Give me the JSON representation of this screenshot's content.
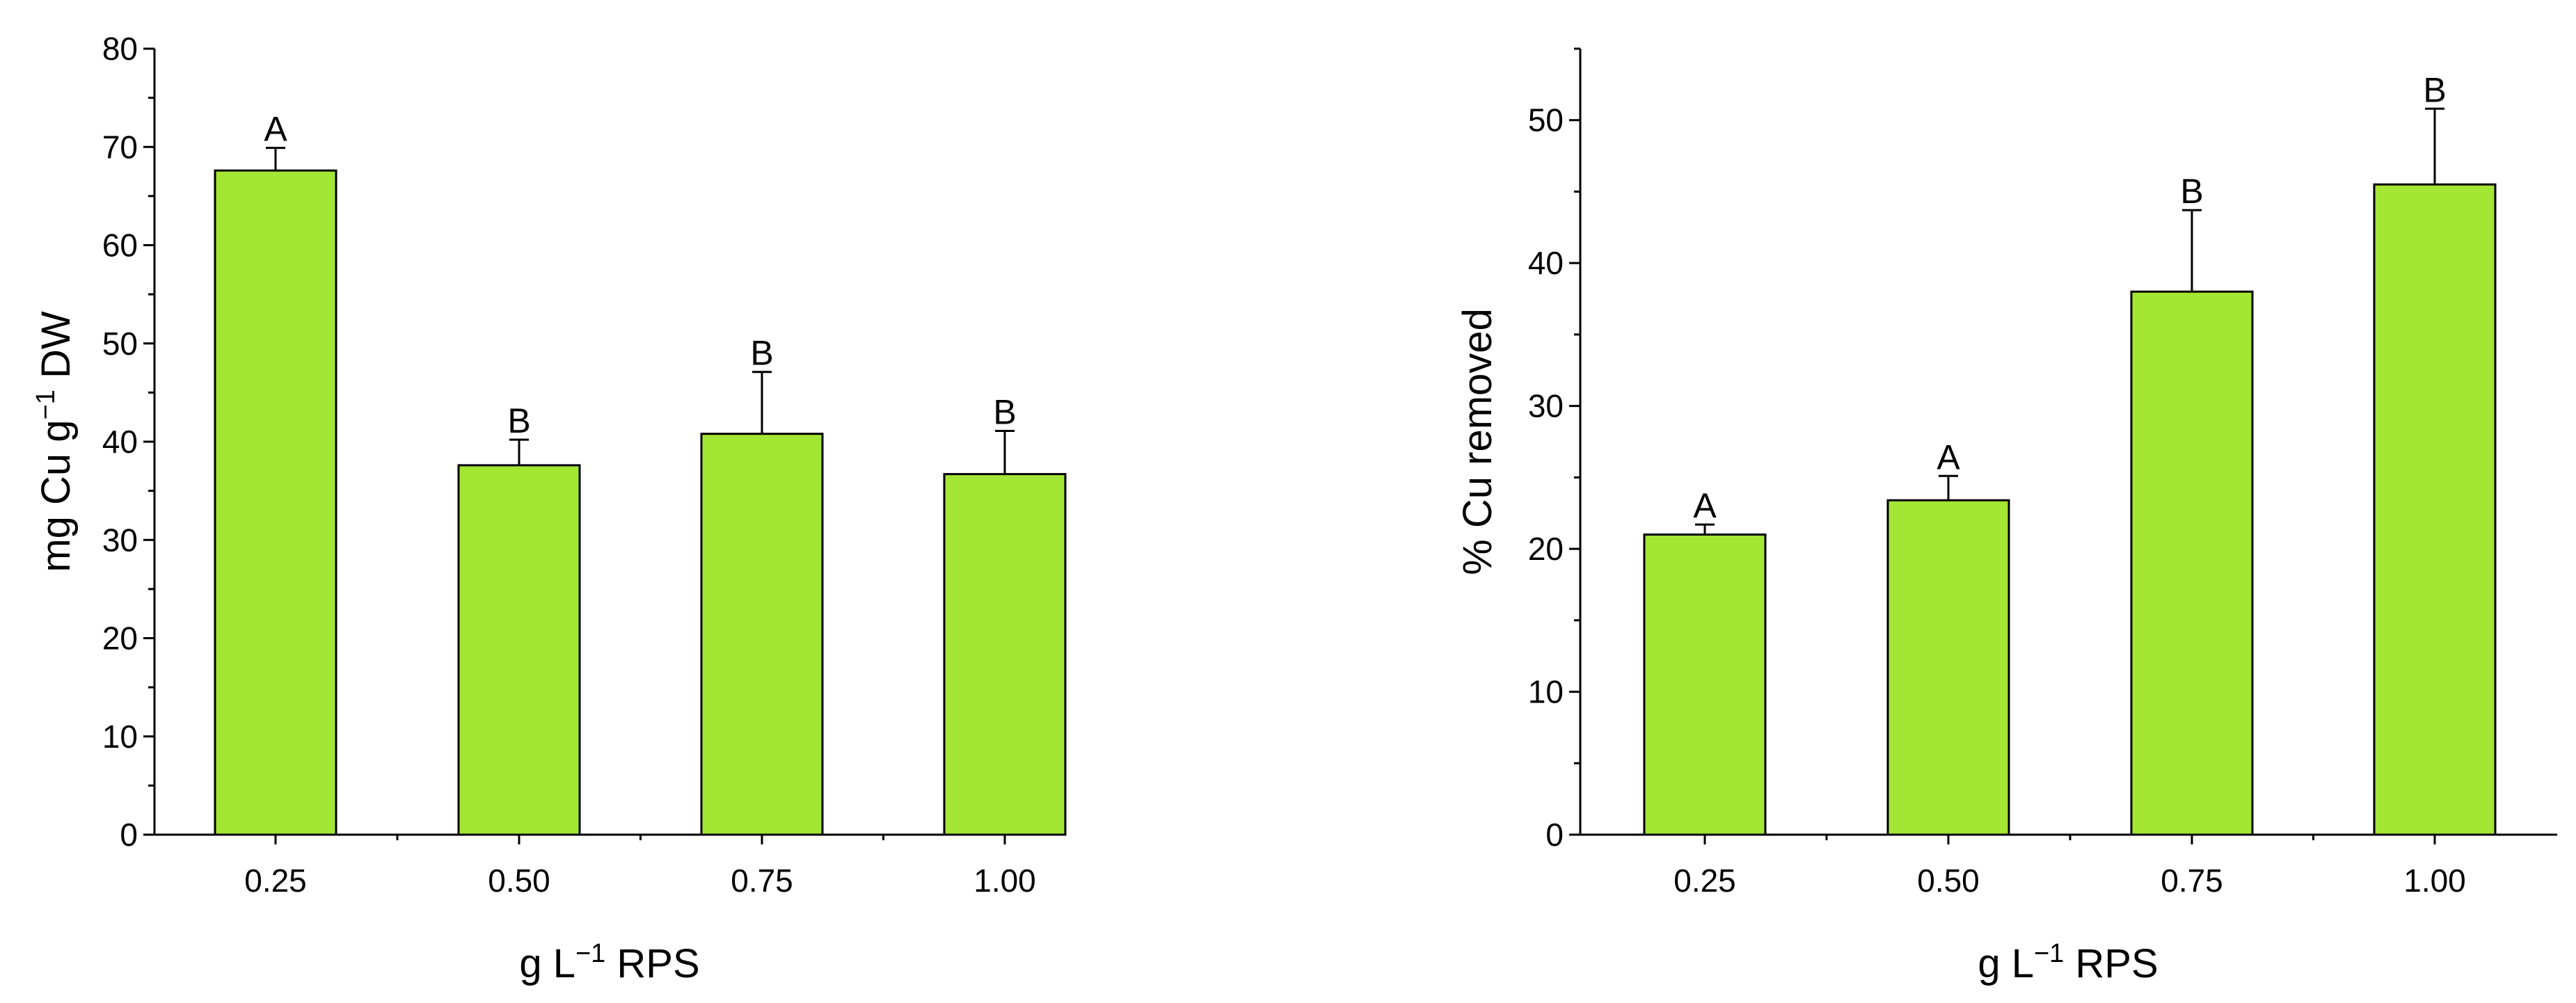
{
  "chart_data": [
    {
      "type": "bar",
      "categories": [
        "0.25",
        "0.50",
        "0.75",
        "1.00"
      ],
      "values": [
        67.6,
        37.6,
        40.8,
        36.7
      ],
      "errors": [
        2.3,
        2.6,
        6.3,
        4.4
      ],
      "significance": [
        "A",
        "B",
        "B",
        "B"
      ],
      "xlabel": {
        "main": "g L",
        "sup": "−1",
        "rest": " RPS"
      },
      "ylabel": {
        "main": "mg Cu g",
        "sup": "−1",
        "rest": " DW"
      },
      "ylim": [
        0,
        80
      ],
      "yticks": [
        0,
        10,
        20,
        30,
        40,
        50,
        60,
        70,
        80
      ],
      "grid": false,
      "bar_color": "#a4e634"
    },
    {
      "type": "bar",
      "categories": [
        "0.25",
        "0.50",
        "0.75",
        "1.00"
      ],
      "values": [
        21.0,
        23.4,
        38.0,
        45.5
      ],
      "errors": [
        0.7,
        1.7,
        5.7,
        5.3
      ],
      "significance": [
        "A",
        "A",
        "B",
        "B"
      ],
      "xlabel": {
        "main": "g L",
        "sup": "−1",
        "rest": " RPS"
      },
      "ylabel": {
        "main": "% Cu removed",
        "sup": "",
        "rest": ""
      },
      "ylim": [
        0,
        55
      ],
      "yticks": [
        0,
        10,
        20,
        30,
        40,
        50
      ],
      "grid": false,
      "bar_color": "#a4e634"
    }
  ]
}
